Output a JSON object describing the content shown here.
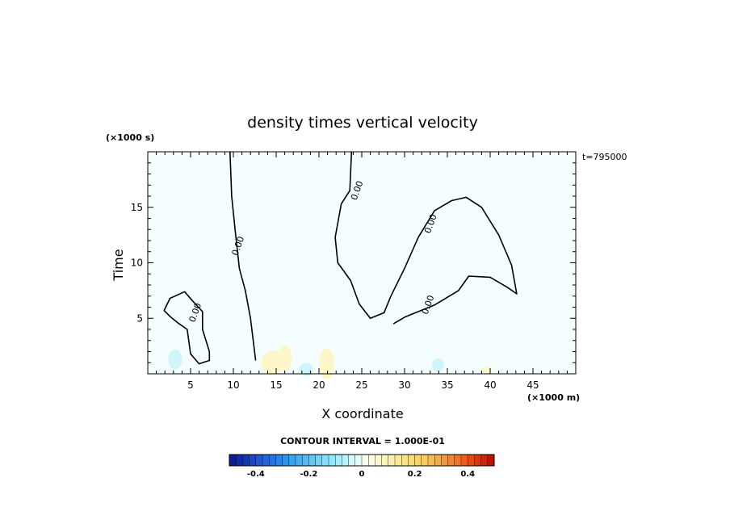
{
  "chart_data": {
    "type": "contour",
    "title": "density times vertical velocity",
    "xlabel": "X coordinate",
    "ylabel": "Time",
    "x_unit": "(×1000 m)",
    "y_unit": "(×1000 s)",
    "time_stamp": "t=795000",
    "xlim": [
      0,
      50
    ],
    "ylim": [
      0,
      20
    ],
    "x_ticks": [
      5,
      10,
      15,
      20,
      25,
      30,
      35,
      40,
      45
    ],
    "y_ticks": [
      5,
      10,
      15
    ],
    "contour_interval_text": "CONTOUR INTERVAL = 1.000E-01",
    "contour_labels": [
      {
        "text": "0.00",
        "x": 10.6,
        "y": 11.5
      },
      {
        "text": "0.00",
        "x": 5.6,
        "y": 5.5
      },
      {
        "text": "0.00",
        "x": 24.5,
        "y": 16.5
      },
      {
        "text": "0.00",
        "x": 33.1,
        "y": 13.5
      },
      {
        "text": "0.00",
        "x": 32.8,
        "y": 6.2
      }
    ],
    "zero_contours": [
      [
        [
          9.6,
          20
        ],
        [
          9.8,
          16
        ],
        [
          10.2,
          13
        ],
        [
          10.7,
          9.5
        ],
        [
          11.4,
          7.5
        ],
        [
          12.0,
          5.0
        ],
        [
          12.6,
          1.2
        ]
      ],
      [
        [
          23.8,
          20
        ],
        [
          23.6,
          16.5
        ],
        [
          22.6,
          15.3
        ],
        [
          21.9,
          12.3
        ],
        [
          22.2,
          10
        ],
        [
          23.7,
          8.4
        ],
        [
          24.7,
          6.3
        ],
        [
          26.0,
          5.0
        ],
        [
          27.6,
          5.5
        ],
        [
          28.4,
          7.0
        ],
        [
          30.0,
          9.5
        ],
        [
          31.6,
          12.3
        ],
        [
          33.5,
          14.7
        ],
        [
          35.5,
          15.6
        ],
        [
          37.2,
          15.9
        ],
        [
          39.0,
          15.0
        ],
        [
          41.0,
          12.5
        ],
        [
          42.5,
          9.8
        ],
        [
          43.1,
          7.2
        ],
        [
          42.0,
          7.8
        ],
        [
          40.0,
          8.7
        ],
        [
          37.5,
          8.8
        ],
        [
          36.3,
          7.5
        ],
        [
          33.5,
          6.2
        ],
        [
          30.0,
          5.1
        ],
        [
          28.7,
          4.5
        ]
      ],
      [
        [
          1.9,
          5.7
        ],
        [
          2.6,
          6.8
        ],
        [
          4.3,
          7.4
        ],
        [
          5.2,
          6.6
        ],
        [
          6.4,
          5.6
        ],
        [
          6.4,
          4.0
        ],
        [
          7.2,
          2.0
        ],
        [
          7.2,
          1.2
        ],
        [
          6.0,
          0.9
        ],
        [
          5.0,
          1.8
        ],
        [
          4.6,
          4.0
        ],
        [
          3.5,
          4.6
        ],
        [
          2.7,
          5.1
        ],
        [
          1.9,
          5.7
        ]
      ]
    ],
    "shaded_anomalies": [
      {
        "x": 3.2,
        "y": 1.3,
        "rx": 0.8,
        "ry": 0.9,
        "value": -0.05
      },
      {
        "x": 14.6,
        "y": 1.0,
        "rx": 1.3,
        "ry": 1.1,
        "value": 0.05
      },
      {
        "x": 16.0,
        "y": 1.4,
        "rx": 0.8,
        "ry": 1.2,
        "value": 0.05
      },
      {
        "x": 20.9,
        "y": 0.9,
        "rx": 0.9,
        "ry": 1.4,
        "value": 0.05
      },
      {
        "x": 18.5,
        "y": 0.4,
        "rx": 0.8,
        "ry": 0.6,
        "value": -0.05
      },
      {
        "x": 33.9,
        "y": 0.8,
        "rx": 0.7,
        "ry": 0.6,
        "value": -0.05
      },
      {
        "x": 39.6,
        "y": 0.3,
        "rx": 0.6,
        "ry": 0.3,
        "value": 0.05
      }
    ],
    "colorbar": {
      "min": -0.5,
      "max": 0.5,
      "step": 0.025,
      "ticks": [
        "-0.4",
        "-0.2",
        "0",
        "0.2",
        "0.4"
      ],
      "tick_values": [
        -0.4,
        -0.2,
        0,
        0.2,
        0.4
      ]
    }
  },
  "colors": {
    "background_field": "#f4feff",
    "contour": "#000000",
    "frame": "#000000",
    "negative_shade": "#cdf5fb",
    "positive_shade": "#fcf6c8"
  }
}
